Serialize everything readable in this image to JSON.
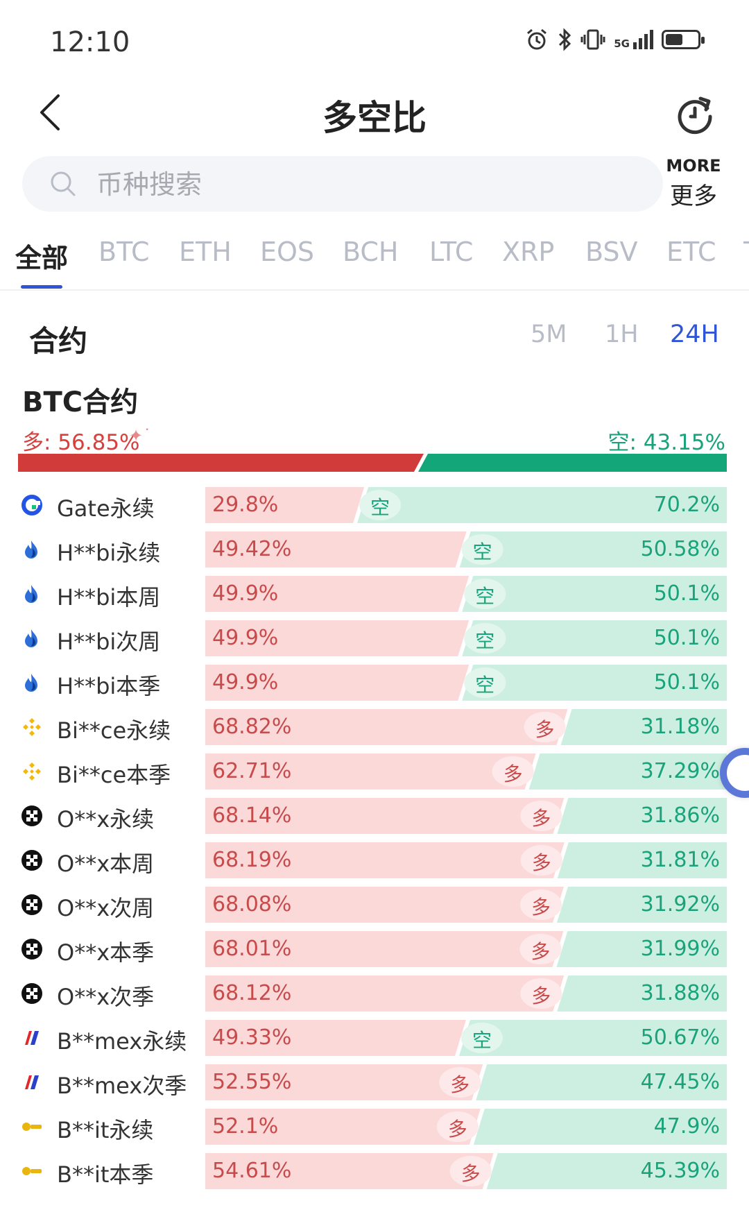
{
  "status_bar": {
    "time": "12:10",
    "icons": [
      "alarm-icon",
      "bluetooth-icon",
      "vibrate-icon",
      "5g-signal-icon",
      "battery-icon"
    ],
    "signal_label": "5G",
    "battery_level": 0.55
  },
  "header": {
    "title": "多空比",
    "back_icon": "chevron-left-icon",
    "refresh_icon": "refresh-icon"
  },
  "search": {
    "placeholder": "币种搜索"
  },
  "more": {
    "en": "MORE",
    "cn": "更多"
  },
  "tabs": [
    {
      "label": "全部",
      "active": true
    },
    {
      "label": "BTC"
    },
    {
      "label": "ETH"
    },
    {
      "label": "EOS"
    },
    {
      "label": "BCH"
    },
    {
      "label": "LTC"
    },
    {
      "label": "XRP"
    },
    {
      "label": "BSV"
    },
    {
      "label": "ETC"
    },
    {
      "label": "T"
    }
  ],
  "section": {
    "title": "合约",
    "periods": [
      {
        "label": "5M"
      },
      {
        "label": "1H"
      },
      {
        "label": "24H",
        "active": true
      }
    ]
  },
  "btc": {
    "title": "BTC合约",
    "long_label": "多: 56.85%",
    "short_label": "空: 43.15%",
    "long_pct": 56.85,
    "short_pct": 43.15
  },
  "colors": {
    "long_bar": "#d13c3b",
    "short_bar": "#12a679",
    "long_bg": "#fbd9d9",
    "short_bg": "#cdefe2",
    "accent": "#2f55d4"
  },
  "rows": [
    {
      "name": "Gate永续",
      "logo": "gate-logo",
      "long": "29.8%",
      "short": "70.2%",
      "long_pct": 29.8,
      "tag": "空"
    },
    {
      "name": "H**bi永续",
      "logo": "huobi-logo",
      "long": "49.42%",
      "short": "50.58%",
      "long_pct": 49.42,
      "tag": "空"
    },
    {
      "name": "H**bi本周",
      "logo": "huobi-logo",
      "long": "49.9%",
      "short": "50.1%",
      "long_pct": 49.9,
      "tag": "空"
    },
    {
      "name": "H**bi次周",
      "logo": "huobi-logo",
      "long": "49.9%",
      "short": "50.1%",
      "long_pct": 49.9,
      "tag": "空"
    },
    {
      "name": "H**bi本季",
      "logo": "huobi-logo",
      "long": "49.9%",
      "short": "50.1%",
      "long_pct": 49.9,
      "tag": "空"
    },
    {
      "name": "Bi**ce永续",
      "logo": "binance-logo",
      "long": "68.82%",
      "short": "31.18%",
      "long_pct": 68.82,
      "tag": "多"
    },
    {
      "name": "Bi**ce本季",
      "logo": "binance-logo",
      "long": "62.71%",
      "short": "37.29%",
      "long_pct": 62.71,
      "tag": "多"
    },
    {
      "name": "O**x永续",
      "logo": "okx-logo",
      "long": "68.14%",
      "short": "31.86%",
      "long_pct": 68.14,
      "tag": "多"
    },
    {
      "name": "O**x本周",
      "logo": "okx-logo",
      "long": "68.19%",
      "short": "31.81%",
      "long_pct": 68.19,
      "tag": "多"
    },
    {
      "name": "O**x次周",
      "logo": "okx-logo",
      "long": "68.08%",
      "short": "31.92%",
      "long_pct": 68.08,
      "tag": "多"
    },
    {
      "name": "O**x本季",
      "logo": "okx-logo",
      "long": "68.01%",
      "short": "31.99%",
      "long_pct": 68.01,
      "tag": "多"
    },
    {
      "name": "O**x次季",
      "logo": "okx-logo",
      "long": "68.12%",
      "short": "31.88%",
      "long_pct": 68.12,
      "tag": "多"
    },
    {
      "name": "B**mex永续",
      "logo": "bitmex-logo",
      "long": "49.33%",
      "short": "50.67%",
      "long_pct": 49.33,
      "tag": "空"
    },
    {
      "name": "B**mex次季",
      "logo": "bitmex-logo",
      "long": "52.55%",
      "short": "47.45%",
      "long_pct": 52.55,
      "tag": "多"
    },
    {
      "name": "B**it永续",
      "logo": "bybit-logo",
      "long": "52.1%",
      "short": "47.9%",
      "long_pct": 52.1,
      "tag": "多"
    },
    {
      "name": "B**it本季",
      "logo": "bybit-logo",
      "long": "54.61%",
      "short": "45.39%",
      "long_pct": 54.61,
      "tag": "多"
    }
  ]
}
